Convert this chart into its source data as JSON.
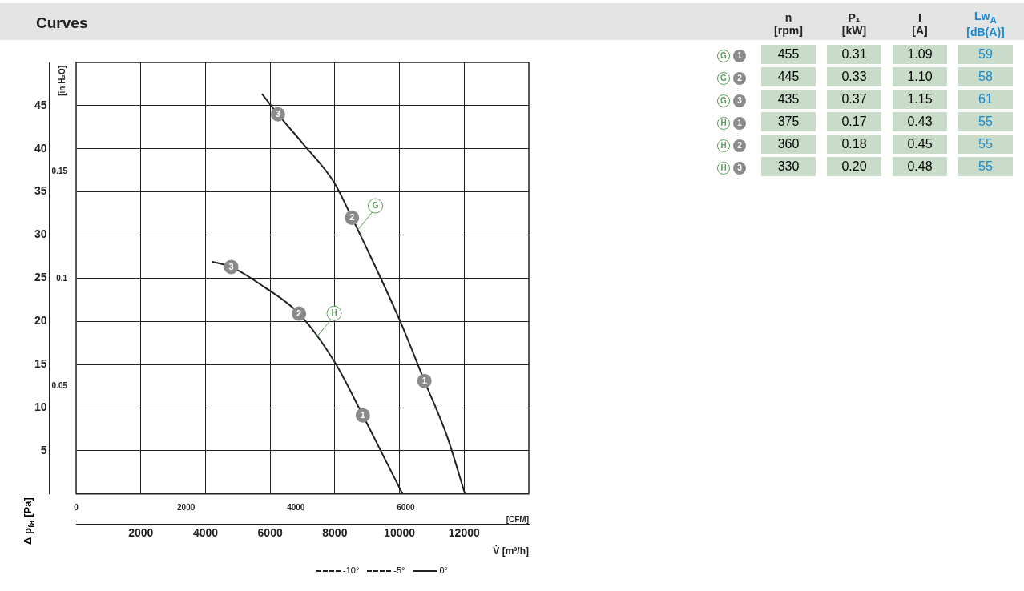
{
  "chart_data": [
    {
      "type": "line",
      "title": "Curves",
      "xlabel": "V̇ [m³/h]",
      "x2label": "[CFM]",
      "ylabel": "Δ p$_{fa}$ [Pa]",
      "y2label": "[in H₂O]",
      "xlim": [
        0,
        14000
      ],
      "xticks": [
        2000,
        4000,
        6000,
        8000,
        10000,
        12000
      ],
      "x2lim": [
        0,
        8240
      ],
      "x2ticks": [
        0,
        2000,
        4000,
        6000
      ],
      "ylim": [
        0,
        50
      ],
      "yticks": [
        5,
        10,
        15,
        20,
        25,
        30,
        35,
        40,
        45
      ],
      "y2lim": [
        0,
        0.2007
      ],
      "y2ticks": [
        0.05,
        0.1,
        0.15
      ],
      "grid": true,
      "legend": false,
      "marker": "none",
      "line_style": "solid",
      "series": [
        {
          "name": "G",
          "color": "#222222",
          "x": [
            5759,
            6241,
            7012,
            7976,
            8530,
            8892,
            10024,
            10771,
            11470,
            12024
          ],
          "values": [
            46.3,
            44.0,
            40.6,
            36.1,
            32.0,
            29.2,
            20.0,
            13.1,
            6.7,
            0
          ]
        },
        {
          "name": "H",
          "color": "#222222",
          "x": [
            4217,
            4795,
            5807,
            6892,
            7976,
            8867,
            9542,
            10096
          ],
          "values": [
            26.9,
            26.3,
            24.0,
            20.9,
            15.4,
            9.1,
            4.1,
            0
          ]
        }
      ],
      "annotations": [
        {
          "text": "3",
          "x": 6241,
          "y": 44.0
        },
        {
          "text": "2",
          "x": 8530,
          "y": 32.0
        },
        {
          "text": "1",
          "x": 10771,
          "y": 13.1
        },
        {
          "text": "3",
          "x": 4795,
          "y": 26.3
        },
        {
          "text": "2",
          "x": 6892,
          "y": 20.9
        },
        {
          "text": "1",
          "x": 8867,
          "y": 9.1
        },
        "-10°",
        "-5°",
        "0°"
      ]
    },
    {
      "type": "other",
      "data_labels": true,
      "categories": [
        "n [rpm]",
        "P₁ [kW]",
        "I [A]",
        "Lw$_{A}$ [dB(A)]"
      ],
      "series": [
        {
          "name": "G 1",
          "values": [
            455,
            0.31,
            1.09,
            59
          ],
          "value_labels": [
            "455",
            "0.31",
            "1.09",
            "59"
          ]
        },
        {
          "name": "G 2",
          "values": [
            445,
            0.33,
            1.1,
            58
          ],
          "value_labels": [
            "445",
            "0.33",
            "1.10",
            "58"
          ]
        },
        {
          "name": "G 3",
          "values": [
            435,
            0.37,
            1.15,
            61
          ],
          "value_labels": [
            "435",
            "0.37",
            "1.15",
            "61"
          ]
        },
        {
          "name": "H 1",
          "values": [
            375,
            0.17,
            0.43,
            55
          ],
          "value_labels": [
            "375",
            "0.17",
            "0.43",
            "55"
          ]
        },
        {
          "name": "H 2",
          "values": [
            360,
            0.18,
            0.45,
            55
          ],
          "value_labels": [
            "360",
            "0.18",
            "0.45",
            "55"
          ]
        },
        {
          "name": "H 3",
          "values": [
            330,
            0.2,
            0.48,
            55
          ],
          "value_labels": [
            "330",
            "0.20",
            "0.48",
            "55"
          ]
        }
      ]
    }
  ]
}
